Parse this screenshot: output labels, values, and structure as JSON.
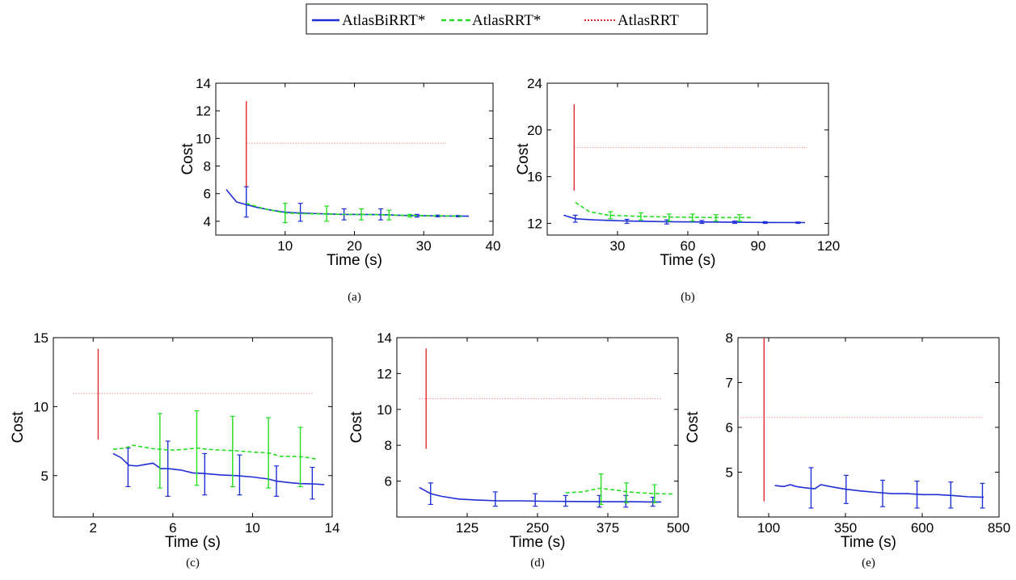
{
  "legend": {
    "entries": [
      {
        "label": "AtlasBiRRT*",
        "color": "#1f2fd6",
        "style": "solid"
      },
      {
        "label": "AtlasRRT*",
        "color": "#22dd22",
        "style": "dashed"
      },
      {
        "label": "AtlasRRT",
        "color": "#e0282a",
        "style": "dotted"
      }
    ]
  },
  "chart_data": [
    {
      "type": "line",
      "caption": "(a)",
      "xlabel": "Time (s)",
      "ylabel": "Cost",
      "xlim": [
        0,
        40
      ],
      "ylim": [
        3,
        14
      ],
      "xticks": [
        10,
        20,
        30,
        40
      ],
      "yticks": [
        4,
        6,
        8,
        10,
        12,
        14
      ],
      "series": [
        {
          "name": "AtlasBiRRT*",
          "x": [
            1.5,
            3,
            4.4,
            6,
            8,
            10,
            12.2,
            15,
            18.5,
            21,
            23.8,
            27,
            30,
            33,
            36.5
          ],
          "y": [
            6.3,
            5.4,
            5.2,
            5.0,
            4.8,
            4.65,
            4.6,
            4.55,
            4.5,
            4.5,
            4.48,
            4.42,
            4.4,
            4.38,
            4.37
          ],
          "errors": [
            {
              "x": 4.4,
              "low": 4.3,
              "high": 6.5
            },
            {
              "x": 12.2,
              "low": 4.0,
              "high": 5.3
            },
            {
              "x": 18.5,
              "low": 4.1,
              "high": 4.9
            },
            {
              "x": 23.8,
              "low": 4.1,
              "high": 4.9
            },
            {
              "x": 29,
              "low": 4.3,
              "high": 4.5
            },
            {
              "x": 32,
              "low": 4.32,
              "high": 4.45
            },
            {
              "x": 35,
              "low": 4.32,
              "high": 4.42
            }
          ]
        },
        {
          "name": "AtlasRRT*",
          "x": [
            4.4,
            7,
            10,
            13,
            16,
            18.5,
            21,
            23.5,
            25,
            28,
            31,
            34,
            35.5
          ],
          "y": [
            5.3,
            4.9,
            4.6,
            4.55,
            4.52,
            4.5,
            4.5,
            4.48,
            4.45,
            4.42,
            4.4,
            4.38,
            4.37
          ],
          "errors": [
            {
              "x": 10,
              "low": 3.9,
              "high": 5.3
            },
            {
              "x": 16,
              "low": 4.0,
              "high": 5.1
            },
            {
              "x": 21,
              "low": 4.1,
              "high": 4.9
            },
            {
              "x": 25,
              "low": 4.1,
              "high": 4.8
            },
            {
              "x": 28,
              "low": 4.3,
              "high": 4.5
            }
          ]
        },
        {
          "name": "AtlasRRT",
          "x": [
            4.4,
            33.2
          ],
          "y": [
            9.65,
            9.65
          ],
          "errors": [
            {
              "x": 4.4,
              "low": 6.5,
              "high": 12.7
            }
          ]
        }
      ]
    },
    {
      "type": "line",
      "caption": "(b)",
      "xlabel": "Time (s)",
      "ylabel": "Cost",
      "xlim": [
        0,
        120
      ],
      "ylim": [
        11,
        24
      ],
      "xticks": [
        30,
        60,
        90,
        120
      ],
      "yticks": [
        12,
        16,
        20,
        24
      ],
      "series": [
        {
          "name": "AtlasBiRRT*",
          "x": [
            7,
            12,
            20,
            34,
            50,
            66,
            80,
            95,
            110
          ],
          "y": [
            12.7,
            12.4,
            12.3,
            12.2,
            12.15,
            12.12,
            12.1,
            12.08,
            12.07
          ],
          "errors": [
            {
              "x": 12,
              "low": 12.1,
              "high": 12.7
            },
            {
              "x": 34,
              "low": 12.0,
              "high": 12.35
            },
            {
              "x": 51,
              "low": 11.95,
              "high": 12.3
            },
            {
              "x": 66,
              "low": 12.0,
              "high": 12.25
            },
            {
              "x": 80,
              "low": 12.0,
              "high": 12.2
            },
            {
              "x": 93,
              "low": 12.0,
              "high": 12.15
            },
            {
              "x": 107,
              "low": 12.0,
              "high": 12.12
            }
          ]
        },
        {
          "name": "AtlasRRT*",
          "x": [
            12,
            18,
            26,
            40,
            52,
            62,
            72,
            82,
            88
          ],
          "y": [
            13.8,
            13.0,
            12.7,
            12.6,
            12.55,
            12.52,
            12.5,
            12.5,
            12.5
          ],
          "errors": [
            {
              "x": 27,
              "low": 12.4,
              "high": 13.0
            },
            {
              "x": 40,
              "low": 12.3,
              "high": 12.9
            },
            {
              "x": 52,
              "low": 12.2,
              "high": 12.8
            },
            {
              "x": 62,
              "low": 12.2,
              "high": 12.8
            },
            {
              "x": 72,
              "low": 12.2,
              "high": 12.75
            },
            {
              "x": 82,
              "low": 12.2,
              "high": 12.75
            }
          ]
        },
        {
          "name": "AtlasRRT",
          "x": [
            11.5,
            111
          ],
          "y": [
            18.5,
            18.5
          ],
          "errors": [
            {
              "x": 11.5,
              "low": 14.8,
              "high": 22.2
            }
          ]
        }
      ]
    },
    {
      "type": "line",
      "caption": "(c)",
      "xlabel": "Time (s)",
      "ylabel": "Cost",
      "xlim": [
        0,
        14
      ],
      "ylim": [
        2,
        15
      ],
      "xticks": [
        2,
        6,
        10,
        14
      ],
      "yticks": [
        5,
        10,
        15
      ],
      "series": [
        {
          "name": "AtlasBiRRT*",
          "x": [
            3.0,
            3.4,
            3.8,
            4.2,
            4.6,
            5.0,
            5.4,
            5.8,
            6.4,
            7.0,
            7.6,
            8.4,
            9.2,
            10.0,
            10.8,
            11.2,
            11.8,
            12.4,
            13.0,
            13.6
          ],
          "y": [
            6.6,
            6.3,
            5.75,
            5.7,
            5.8,
            5.9,
            5.5,
            5.5,
            5.4,
            5.2,
            5.15,
            5.05,
            5.0,
            4.9,
            4.75,
            4.6,
            4.5,
            4.42,
            4.4,
            4.35
          ],
          "errors": [
            {
              "x": 3.75,
              "low": 4.2,
              "high": 7.0
            },
            {
              "x": 5.75,
              "low": 3.5,
              "high": 7.5
            },
            {
              "x": 7.6,
              "low": 3.6,
              "high": 6.6
            },
            {
              "x": 9.35,
              "low": 3.6,
              "high": 6.5
            },
            {
              "x": 11.2,
              "low": 3.5,
              "high": 5.7
            },
            {
              "x": 13.0,
              "low": 3.3,
              "high": 5.6
            }
          ]
        },
        {
          "name": "AtlasRRT*",
          "x": [
            3.0,
            3.6,
            4.0,
            4.4,
            5.0,
            5.4,
            6.0,
            6.6,
            7.2,
            7.8,
            8.4,
            9.2,
            10.0,
            10.8,
            11.4,
            12.0,
            12.6,
            13.2
          ],
          "y": [
            6.9,
            7.0,
            7.2,
            7.1,
            6.95,
            6.9,
            6.85,
            6.9,
            7.0,
            6.9,
            6.85,
            6.8,
            6.7,
            6.65,
            6.4,
            6.4,
            6.35,
            6.2
          ],
          "errors": [
            {
              "x": 5.35,
              "low": 4.1,
              "high": 9.5
            },
            {
              "x": 7.2,
              "low": 4.3,
              "high": 9.7
            },
            {
              "x": 9.0,
              "low": 4.2,
              "high": 9.3
            },
            {
              "x": 10.8,
              "low": 4.1,
              "high": 9.2
            },
            {
              "x": 12.4,
              "low": 4.2,
              "high": 8.5
            }
          ]
        },
        {
          "name": "AtlasRRT",
          "x": [
            1.0,
            13.0
          ],
          "y": [
            10.95,
            10.95
          ],
          "errors": [
            {
              "x": 2.25,
              "low": 7.6,
              "high": 14.2
            }
          ]
        }
      ]
    },
    {
      "type": "line",
      "caption": "(d)",
      "xlabel": "Time (s)",
      "ylabel": "Cost",
      "xlim": [
        0,
        500
      ],
      "ylim": [
        4,
        14
      ],
      "xticks": [
        125,
        250,
        375,
        500
      ],
      "yticks": [
        6,
        8,
        10,
        12,
        14
      ],
      "series": [
        {
          "name": "AtlasBiRRT*",
          "x": [
            40,
            60,
            80,
            110,
            140,
            180,
            220,
            260,
            300,
            340,
            380,
            420,
            450,
            470
          ],
          "y": [
            5.65,
            5.3,
            5.15,
            5.0,
            4.95,
            4.9,
            4.9,
            4.88,
            4.87,
            4.86,
            4.85,
            4.85,
            4.84,
            4.84
          ],
          "errors": [
            {
              "x": 60,
              "low": 4.7,
              "high": 5.9
            },
            {
              "x": 175,
              "low": 4.6,
              "high": 5.4
            },
            {
              "x": 246,
              "low": 4.6,
              "high": 5.3
            },
            {
              "x": 300,
              "low": 4.6,
              "high": 5.2
            },
            {
              "x": 360,
              "low": 4.55,
              "high": 5.2
            },
            {
              "x": 407,
              "low": 4.55,
              "high": 5.2
            },
            {
              "x": 455,
              "low": 4.6,
              "high": 5.1
            }
          ]
        },
        {
          "name": "AtlasRRT*",
          "x": [
            300,
            330,
            360,
            390,
            410,
            430,
            460,
            490
          ],
          "y": [
            5.35,
            5.4,
            5.6,
            5.5,
            5.4,
            5.35,
            5.3,
            5.28
          ],
          "errors": [
            {
              "x": 363,
              "low": 4.7,
              "high": 6.4
            },
            {
              "x": 408,
              "low": 4.8,
              "high": 5.9
            },
            {
              "x": 458,
              "low": 4.8,
              "high": 5.8
            }
          ]
        },
        {
          "name": "AtlasRRT",
          "x": [
            40,
            470
          ],
          "y": [
            10.6,
            10.6
          ],
          "errors": [
            {
              "x": 52,
              "low": 7.8,
              "high": 13.4
            }
          ]
        }
      ]
    },
    {
      "type": "line",
      "caption": "(e)",
      "xlabel": "Time (s)",
      "ylabel": "Cost",
      "xlim": [
        0,
        850
      ],
      "ylim": [
        4,
        8
      ],
      "xticks": [
        100,
        350,
        600,
        850
      ],
      "yticks": [
        5,
        6,
        7,
        8
      ],
      "series": [
        {
          "name": "AtlasBiRRT*",
          "x": [
            120,
            150,
            170,
            190,
            220,
            250,
            270,
            300,
            350,
            400,
            450,
            500,
            550,
            600,
            650,
            700,
            750,
            800
          ],
          "y": [
            4.7,
            4.68,
            4.72,
            4.68,
            4.65,
            4.63,
            4.72,
            4.68,
            4.62,
            4.58,
            4.55,
            4.52,
            4.52,
            4.5,
            4.5,
            4.48,
            4.45,
            4.44
          ],
          "errors": [
            {
              "x": 238,
              "low": 4.2,
              "high": 5.1
            },
            {
              "x": 352,
              "low": 4.3,
              "high": 4.93
            },
            {
              "x": 471,
              "low": 4.23,
              "high": 4.82
            },
            {
              "x": 583,
              "low": 4.2,
              "high": 4.8
            },
            {
              "x": 693,
              "low": 4.2,
              "high": 4.78
            },
            {
              "x": 796,
              "low": 4.2,
              "high": 4.75
            }
          ]
        },
        {
          "name": "AtlasRRT",
          "x": [
            0,
            800
          ],
          "y": [
            6.22,
            6.22
          ],
          "errors": [
            {
              "x": 85,
              "low": 4.35,
              "high": 8.0
            }
          ]
        }
      ]
    }
  ]
}
